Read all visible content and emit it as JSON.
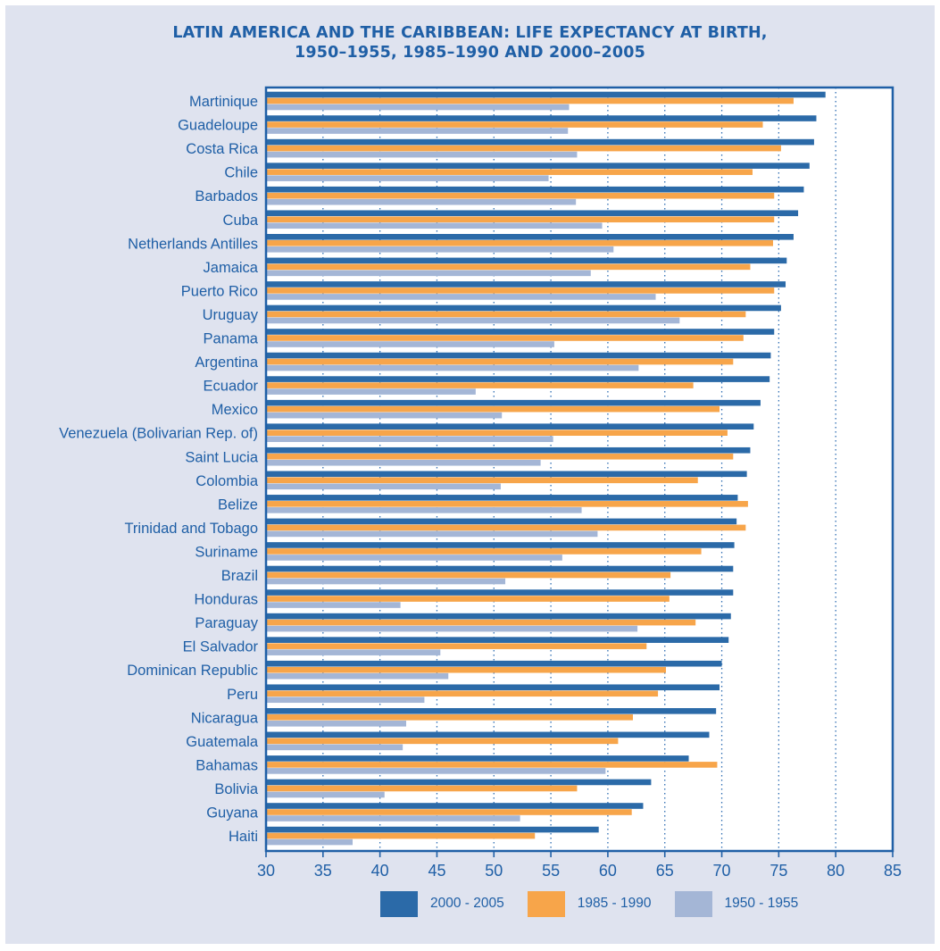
{
  "figure": {
    "title_line1": "LATIN AMERICA AND THE CARIBBEAN: LIFE EXPECTANCY AT BIRTH,",
    "title_line2": "1950–1955, 1985–1990 AND 2000–2005"
  },
  "colors": {
    "background": "#dfe3ef",
    "plot_background": "#ffffff",
    "axis": "#1f5fa6",
    "grid": "#2f6eb3",
    "text": "#1f5fa6"
  },
  "chart_data": {
    "type": "bar",
    "orientation": "horizontal",
    "title": "LATIN AMERICA AND THE CARIBBEAN: LIFE EXPECTANCY AT BIRTH, 1950–1955, 1985–1990 AND 2000–2005",
    "xlabel": "",
    "ylabel": "",
    "xlim": [
      30,
      85
    ],
    "xticks": [
      30,
      35,
      40,
      45,
      50,
      55,
      60,
      65,
      70,
      75,
      80,
      85
    ],
    "grid": "vertical dotted",
    "legend_position": "bottom",
    "categories": [
      "Martinique",
      "Guadeloupe",
      "Costa Rica",
      "Chile",
      "Barbados",
      "Cuba",
      "Netherlands Antilles",
      "Jamaica",
      "Puerto Rico",
      "Uruguay",
      "Panama",
      "Argentina",
      "Ecuador",
      "Mexico",
      "Venezuela (Bolivarian Rep. of)",
      "Saint Lucia",
      "Colombia",
      "Belize",
      "Trinidad and Tobago",
      "Suriname",
      "Brazil",
      "Honduras",
      "Paraguay",
      "El Salvador",
      "Dominican Republic",
      "Peru",
      "Nicaragua",
      "Guatemala",
      "Bahamas",
      "Bolivia",
      "Guyana",
      "Haiti"
    ],
    "series": [
      {
        "name": "2000 - 2005",
        "color": "#2b6aa8",
        "values": [
          79.1,
          78.3,
          78.1,
          77.7,
          77.2,
          76.7,
          76.3,
          75.7,
          75.6,
          75.2,
          74.6,
          74.3,
          74.2,
          73.4,
          72.8,
          72.5,
          72.2,
          71.4,
          71.3,
          71.1,
          71.0,
          71.0,
          70.8,
          70.6,
          70.0,
          69.8,
          69.5,
          68.9,
          67.1,
          63.8,
          63.1,
          59.2
        ]
      },
      {
        "name": "1985 - 1990",
        "color": "#f7a54a",
        "values": [
          76.3,
          73.6,
          75.2,
          72.7,
          74.6,
          74.6,
          74.5,
          72.5,
          74.6,
          72.1,
          71.9,
          71.0,
          67.5,
          69.8,
          70.5,
          71.0,
          67.9,
          72.3,
          72.1,
          68.2,
          65.5,
          65.4,
          67.7,
          63.4,
          65.1,
          64.4,
          62.2,
          60.9,
          69.6,
          57.3,
          62.1,
          53.6
        ]
      },
      {
        "name": "1950 - 1955",
        "color": "#a4b6d6",
        "values": [
          56.6,
          56.5,
          57.3,
          54.8,
          57.2,
          59.5,
          60.5,
          58.5,
          64.2,
          66.3,
          55.3,
          62.7,
          48.4,
          50.7,
          55.2,
          54.1,
          50.6,
          57.7,
          59.1,
          56.0,
          51.0,
          41.8,
          62.6,
          45.3,
          46.0,
          43.9,
          42.3,
          42.0,
          59.8,
          40.4,
          52.3,
          37.6
        ]
      }
    ]
  }
}
